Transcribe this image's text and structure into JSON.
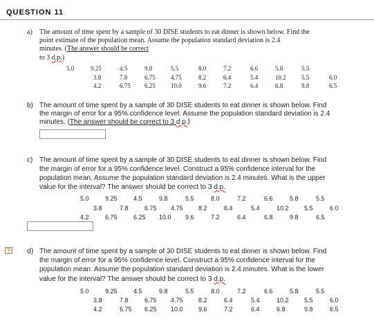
{
  "header": "QUESTION 11",
  "a": {
    "label": "a)",
    "l1": "The amount of time spent by a sample of 30 DISE students to eat dinner is shown below. Find the",
    "l2": "point estimate of the population mean. Assume the population standard deviation is 2.4",
    "l3a": "minutes. (",
    "l3b": "The answer should be correct",
    "l4a": "to 3 ",
    "l4b": "d.p.",
    "l4c": ")"
  },
  "b": {
    "label": "b)",
    "l1": "The amount of time spent by a sample of 30 DISE students to eat dinner is shown below. Find",
    "l2": "the margin of error for a 95% confidence level. Assume the population standard deviation is 2.4",
    "l3a": "minutes. (",
    "l3b": "The answer should be correct to 3 ",
    "l3c": "d.p.",
    "l3d": ")"
  },
  "c": {
    "label": "c)",
    "l1": "The amount of time spent by a sample of 30 DISE students to eat dinner is shown below. Find",
    "l2": "the margin of error for a 95% confidence level. Construct a 95% confidence interval for the",
    "l3": "population mean. Assume the population standard deviation is 2.4 minutes. What is the upper",
    "l4a": "value for the interval? The answer should be correct to 3 ",
    "l4b": "d.p."
  },
  "d": {
    "label": "d)",
    "l1": "The amount of time spent by a sample of 30 DISE students to eat dinner is shown below. Find",
    "l2": "the margin of error for a 95% confidence level. Construct a 95% confidence interval for the",
    "l3": "population mean. Assume the population standard deviation is 2.4 minutes. What is the lower",
    "l4a": "value for the interval? The answer should be correct to 3 ",
    "l4b": "d.p."
  },
  "data_rows": [
    [
      "5.0",
      "9.25",
      "4.5",
      "9.8",
      "5.5",
      "8.0",
      "7.2",
      "6.6",
      "5.8",
      "5.5"
    ],
    [
      "3.8",
      "7.8",
      "6.75",
      "4.75",
      "8.2",
      "6.4",
      "5.4",
      "10.2",
      "5.5",
      "6.0"
    ],
    [
      "4.2",
      "6.75",
      "6.25",
      "10.0",
      "9.6",
      "7.2",
      "6.4",
      "6.8",
      "9.8",
      "6.5"
    ]
  ],
  "icons": {
    "question_mark": "question-mark-bubble-icon"
  }
}
